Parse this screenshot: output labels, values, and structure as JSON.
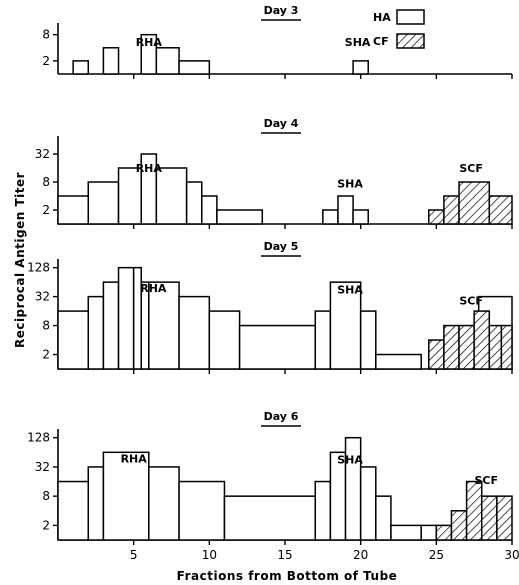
{
  "chart_data": [
    {
      "type": "step",
      "title": "Day 3",
      "y_ticks": [
        2,
        8
      ],
      "ylim": [
        1,
        12
      ],
      "annotations": [
        {
          "text": "RHA",
          "x": 6,
          "y": 4
        },
        {
          "text": "SHA",
          "x": 19.8,
          "y": 4
        }
      ],
      "series": [
        {
          "name": "HA",
          "steps": [
            [
              1,
              2,
              2
            ],
            [
              3,
              4,
              4
            ],
            [
              5.5,
              6.5,
              8
            ],
            [
              6.5,
              8,
              4
            ],
            [
              8,
              10,
              2
            ],
            [
              19.5,
              20.5,
              2
            ]
          ]
        }
      ]
    },
    {
      "type": "step",
      "title": "Day 4",
      "y_ticks": [
        2,
        8,
        32
      ],
      "ylim": [
        1,
        64
      ],
      "annotations": [
        {
          "text": "RHA",
          "x": 6,
          "y": 12
        },
        {
          "text": "SHA",
          "x": 19.3,
          "y": 5.5
        },
        {
          "text": "SCF",
          "x": 27.3,
          "y": 12
        }
      ],
      "series": [
        {
          "name": "HA",
          "steps": [
            [
              0,
              2,
              4
            ],
            [
              2,
              4,
              8
            ],
            [
              4,
              5.5,
              16
            ],
            [
              5.5,
              6.5,
              32
            ],
            [
              6.5,
              8.5,
              16
            ],
            [
              8.5,
              9.5,
              8
            ],
            [
              9.5,
              10.5,
              4
            ],
            [
              10.5,
              13.5,
              2
            ],
            [
              17.5,
              18.5,
              2
            ],
            [
              18.5,
              19.5,
              4
            ],
            [
              19.5,
              20.5,
              2
            ]
          ]
        },
        {
          "name": "CF",
          "steps": [
            [
              24.5,
              25.5,
              2
            ],
            [
              25.5,
              26.5,
              4
            ],
            [
              26.5,
              28.5,
              8
            ],
            [
              28.5,
              30,
              4
            ]
          ]
        }
      ]
    },
    {
      "type": "step",
      "title": "Day 5",
      "y_ticks": [
        2,
        8,
        32,
        128
      ],
      "ylim": [
        1,
        160
      ],
      "annotations": [
        {
          "text": "RHA",
          "x": 6.3,
          "y": 36
        },
        {
          "text": "SHA",
          "x": 19.3,
          "y": 34
        },
        {
          "text": "SCF",
          "x": 27.3,
          "y": 20
        }
      ],
      "series": [
        {
          "name": "HA",
          "steps": [
            [
              0,
              2,
              16
            ],
            [
              2,
              3,
              32
            ],
            [
              3,
              4,
              64
            ],
            [
              4,
              5,
              128
            ],
            [
              5,
              5.5,
              128
            ],
            [
              5.5,
              6,
              64
            ],
            [
              6,
              8,
              64
            ],
            [
              8,
              10,
              32
            ],
            [
              10,
              12,
              16
            ],
            [
              12,
              17,
              8
            ],
            [
              17,
              18,
              16
            ],
            [
              18,
              20,
              64
            ],
            [
              20,
              21,
              16
            ],
            [
              21,
              24,
              2
            ],
            [
              27.8,
              30,
              32
            ]
          ]
        },
        {
          "name": "CF",
          "steps": [
            [
              24.5,
              25.5,
              4
            ],
            [
              25.5,
              26.5,
              8
            ],
            [
              26.5,
              27.5,
              8
            ],
            [
              27.5,
              28.5,
              16
            ],
            [
              28.5,
              29.3,
              8
            ],
            [
              29.3,
              30,
              8
            ]
          ]
        }
      ]
    },
    {
      "type": "step",
      "title": "Day 6",
      "y_ticks": [
        2,
        8,
        32,
        128
      ],
      "ylim": [
        1,
        160
      ],
      "annotations": [
        {
          "text": "RHA",
          "x": 5,
          "y": 36
        },
        {
          "text": "SHA",
          "x": 19.3,
          "y": 34
        },
        {
          "text": "SCF",
          "x": 28.3,
          "y": 13
        }
      ],
      "series": [
        {
          "name": "HA",
          "steps": [
            [
              0,
              2,
              16
            ],
            [
              2,
              3,
              32
            ],
            [
              3,
              6,
              64
            ],
            [
              6,
              8,
              32
            ],
            [
              8,
              11,
              16
            ],
            [
              11,
              17,
              8
            ],
            [
              17,
              18,
              16
            ],
            [
              18,
              19,
              64
            ],
            [
              19,
              20,
              128
            ],
            [
              20,
              21,
              32
            ],
            [
              21,
              22,
              8
            ],
            [
              22,
              24,
              2
            ],
            [
              24,
              25,
              2
            ]
          ]
        },
        {
          "name": "CF",
          "steps": [
            [
              25,
              26,
              2
            ],
            [
              26,
              27,
              4
            ],
            [
              27,
              28,
              16
            ],
            [
              28,
              29,
              8
            ],
            [
              29,
              30,
              8
            ]
          ]
        }
      ]
    }
  ],
  "x_ticks": [
    5,
    10,
    15,
    20,
    25,
    30
  ],
  "xlim": [
    0,
    30
  ],
  "xlabel": "Fractions from Bottom of Tube",
  "ylabel": "Reciprocal Antigen Titer",
  "legend": [
    {
      "label": "HA",
      "pattern": "open"
    },
    {
      "label": "CF",
      "pattern": "hatched"
    }
  ],
  "legend_position": "top-right",
  "colors": {
    "line": "#000000",
    "fill": "#ffffff"
  }
}
